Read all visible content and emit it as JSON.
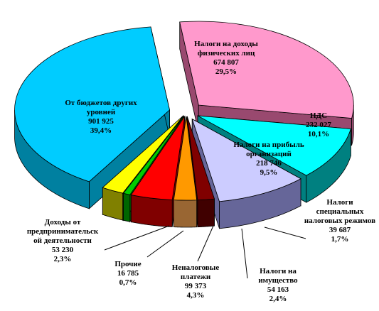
{
  "chart_data": {
    "type": "pie",
    "style": "3d-exploded",
    "unit_note": "",
    "slices": [
      {
        "name": "Налоги на доходы физических лиц",
        "lines": [
          "Налоги на доходы",
          "физических лиц"
        ],
        "value_text": "674 807",
        "percent_text": "29,5%",
        "value": 674807,
        "percent": 29.5,
        "color": "#FF99CC",
        "side_color": "#99496F"
      },
      {
        "name": "НДС",
        "lines": [
          "НДС"
        ],
        "value_text": "232 027",
        "percent_text": "10,1%",
        "value": 232027,
        "percent": 10.1,
        "color": "#00FFFF",
        "side_color": "#008080"
      },
      {
        "name": "Налоги на прибыль организаций",
        "lines": [
          "Налоги на прибыль",
          "организаций"
        ],
        "value_text": "218 746",
        "percent_text": "9,5%",
        "value": 218746,
        "percent": 9.5,
        "color": "#CCCCFF",
        "side_color": "#666699"
      },
      {
        "name": "Налоги специальных налоговых режимов",
        "lines": [
          "Налоги",
          "специальных",
          "налоговых режимов"
        ],
        "value_text": "39 687",
        "percent_text": "1,7%",
        "value": 39687,
        "percent": 1.7,
        "color": "#800000",
        "side_color": "#400000"
      },
      {
        "name": "Налоги на имущество",
        "lines": [
          "Налоги на",
          "имущество"
        ],
        "value_text": "54 163",
        "percent_text": "2,4%",
        "value": 54163,
        "percent": 2.4,
        "color": "#FF9900",
        "side_color": "#996633"
      },
      {
        "name": "Неналоговые платежи",
        "lines": [
          "Неналоговые",
          "платежи"
        ],
        "value_text": "99 373",
        "percent_text": "4,3%",
        "value": 99373,
        "percent": 4.3,
        "color": "#FF0000",
        "side_color": "#800000"
      },
      {
        "name": "Прочие",
        "lines": [
          "Прочие"
        ],
        "value_text": "16 785",
        "percent_text": "0,7%",
        "value": 16785,
        "percent": 0.7,
        "color": "#00CC00",
        "side_color": "#006600"
      },
      {
        "name": "Доходы от предпринимательской деятельности",
        "lines": [
          "Доходы от",
          "предпринимательск",
          "ой деятельности"
        ],
        "value_text": "53 230",
        "percent_text": "2,3%",
        "value": 53230,
        "percent": 2.3,
        "color": "#FFFF00",
        "side_color": "#808000"
      },
      {
        "name": "От бюджетов других уровней",
        "lines": [
          "От бюджетов других",
          "уровней"
        ],
        "value_text": "901 925",
        "percent_text": "39,4%",
        "value": 901925,
        "percent": 39.4,
        "color": "#00CCFF",
        "side_color": "#0080A0"
      }
    ]
  }
}
